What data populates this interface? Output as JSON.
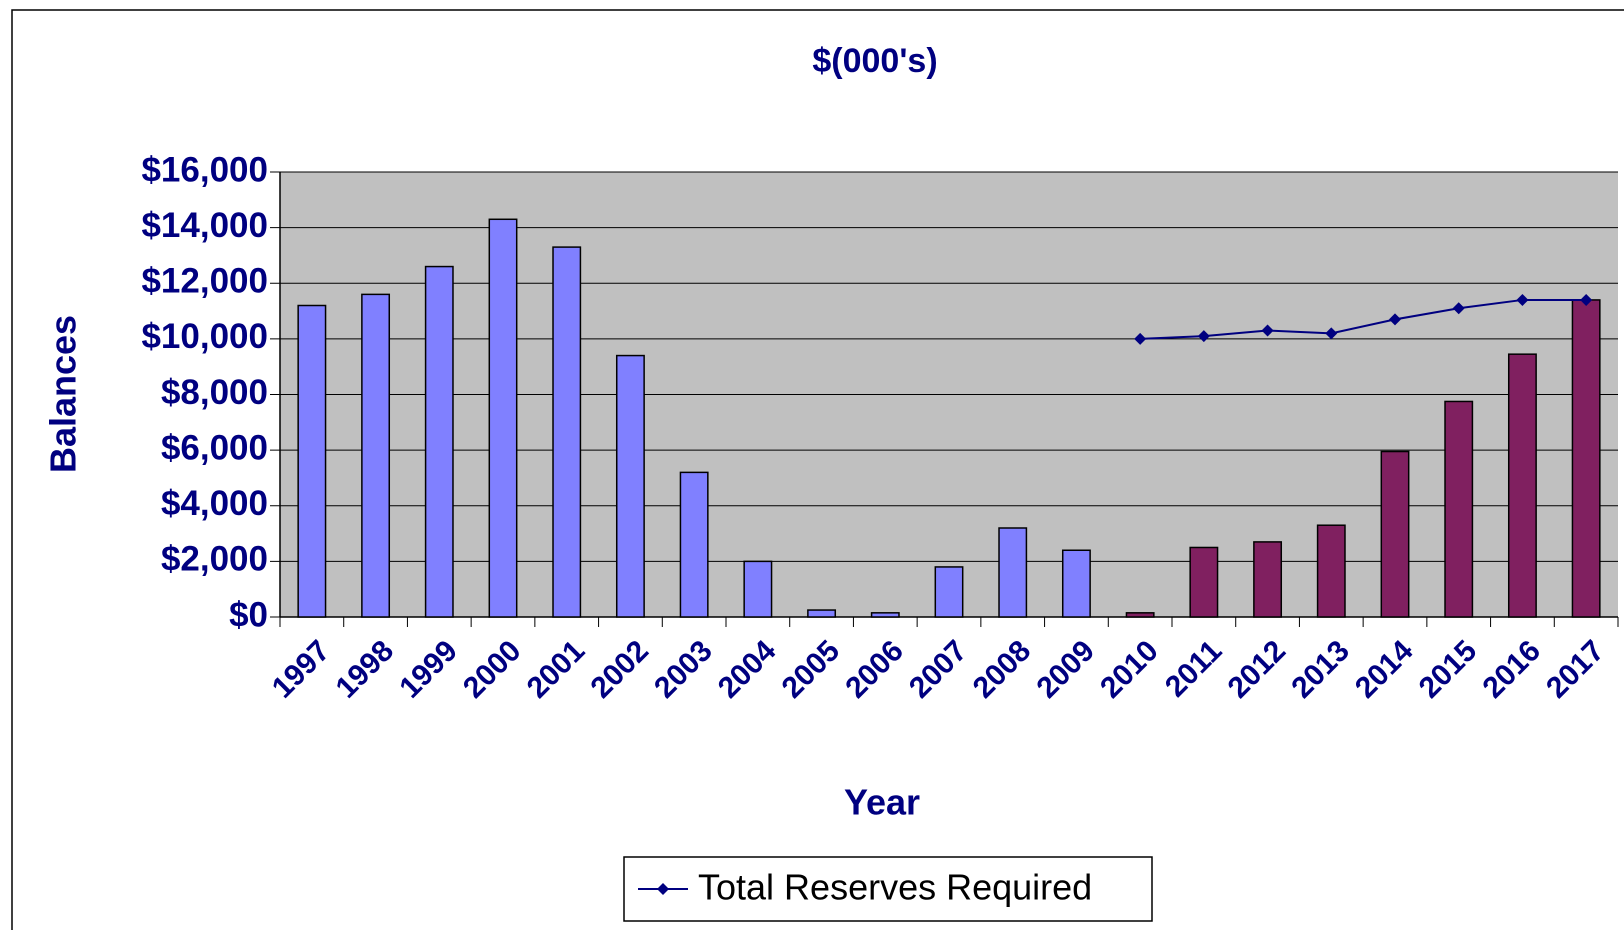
{
  "chart_data": {
    "type": "bar",
    "title": "$(000's)",
    "x_label": "Year",
    "y_label": "Balances",
    "categories": [
      "1997",
      "1998",
      "1999",
      "2000",
      "2001",
      "2002",
      "2003",
      "2004",
      "2005",
      "2006",
      "2007",
      "2008",
      "2009",
      "2010",
      "2011",
      "2012",
      "2013",
      "2014",
      "2015",
      "2016",
      "2017"
    ],
    "values": [
      11200,
      11600,
      12600,
      14300,
      13300,
      9400,
      5200,
      2000,
      250,
      150,
      1800,
      3200,
      2400,
      150,
      2500,
      2700,
      3300,
      5950,
      7750,
      9450,
      11400
    ],
    "bar_colors": [
      "#8080ff",
      "#8080ff",
      "#8080ff",
      "#8080ff",
      "#8080ff",
      "#8080ff",
      "#8080ff",
      "#8080ff",
      "#8080ff",
      "#8080ff",
      "#8080ff",
      "#8080ff",
      "#8080ff",
      "#802060",
      "#802060",
      "#802060",
      "#802060",
      "#802060",
      "#802060",
      "#802060",
      "#802060"
    ],
    "series": [
      {
        "name": "Total Reserves Required",
        "type": "line",
        "color": "#000080",
        "values": [
          null,
          null,
          null,
          null,
          null,
          null,
          null,
          null,
          null,
          null,
          null,
          null,
          null,
          10000,
          10100,
          10300,
          10200,
          10700,
          11100,
          11400,
          11400
        ]
      }
    ],
    "ylim": [
      0,
      16000
    ],
    "yticks": [
      {
        "value": 0,
        "label": "$0"
      },
      {
        "value": 2000,
        "label": "$2,000"
      },
      {
        "value": 4000,
        "label": "$4,000"
      },
      {
        "value": 6000,
        "label": "$6,000"
      },
      {
        "value": 8000,
        "label": "$8,000"
      },
      {
        "value": 10000,
        "label": "$10,000"
      },
      {
        "value": 12000,
        "label": "$12,000"
      },
      {
        "value": 14000,
        "label": "$14,000"
      },
      {
        "value": 16000,
        "label": "$16,000"
      }
    ],
    "grid": true,
    "plot_background": "#c0c0c0",
    "legend": "bottom"
  }
}
